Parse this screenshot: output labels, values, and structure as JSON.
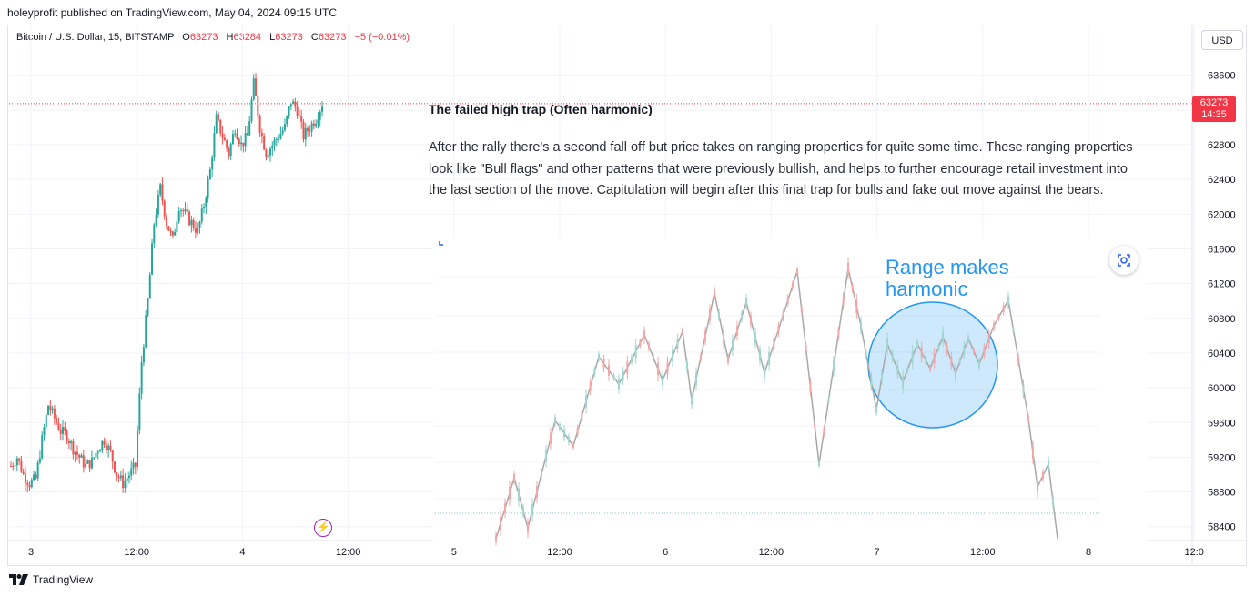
{
  "header": {
    "published": "holeyprofit published on TradingView.com, May 04, 2024 09:15 UTC"
  },
  "legend": {
    "symbol": "Bitcoin / U.S. Dollar, 15, BITSTAMP",
    "o_label": "O",
    "o_value": "63273",
    "h_label": "H",
    "h_value": "63284",
    "l_label": "L",
    "l_value": "63273",
    "c_label": "C",
    "c_value": "63273",
    "change": "−5 (−0.01%)"
  },
  "currency_button": "USD",
  "last_price": {
    "value": "63273",
    "countdown": "14:35"
  },
  "note": {
    "title": "The failed high trap (Often harmonic)",
    "body": "After the rally there's a second fall off but price takes on ranging properties for quite some time. These ranging properties look like \"Bull flags\" and other patterns that were previously bullish, and helps to further encourage retail investment into the last section of the move. Capitulation will begin after this final trap for bulls and fake out move against the bears."
  },
  "embedded_image": {
    "annotation_line1": "Range makes",
    "annotation_line2": "harmonic"
  },
  "footer": {
    "brand": "TradingView"
  },
  "colors": {
    "up": "#26a69a",
    "down": "#ef5350",
    "annotation": "#2196f3",
    "accent_price": "#f23645"
  },
  "chart_data": {
    "type": "candlestick",
    "title": "",
    "y_ticks": [
      58400,
      58800,
      59200,
      59600,
      60000,
      60400,
      60800,
      61200,
      61600,
      62000,
      62400,
      62800,
      63200,
      63600
    ],
    "ylim": [
      58240,
      63880
    ],
    "x_ticks": [
      "3",
      "12:00",
      "4",
      "12:00",
      "5",
      "12:00",
      "6",
      "12:00",
      "7",
      "12:00",
      "8",
      "12:0"
    ],
    "last_price": 63273,
    "series": [
      {
        "name": "",
        "close_path": [
          59100,
          59200,
          59000,
          58900,
          58950,
          59400,
          59800,
          59650,
          59500,
          59450,
          59300,
          59200,
          59100,
          59150,
          59300,
          59400,
          59250,
          59000,
          58900,
          59000,
          59100,
          60300,
          61000,
          61900,
          62300,
          61900,
          61700,
          62100,
          62000,
          61900,
          61800,
          62100,
          62500,
          63100,
          62900,
          62700,
          63000,
          62800,
          62900,
          63500,
          63000,
          62700,
          62800,
          62900,
          63000,
          63300,
          63200,
          62900,
          63000,
          63100,
          63273
        ]
      }
    ]
  }
}
